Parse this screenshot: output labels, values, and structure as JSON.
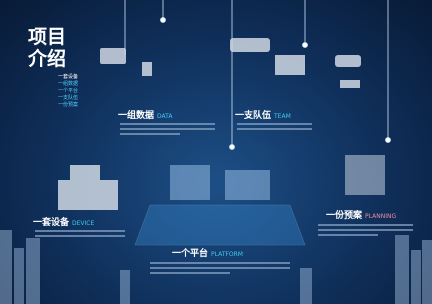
{
  "header": {
    "title_lines": [
      "项目",
      "介绍"
    ],
    "menu": [
      "一套设备",
      "一组数据",
      "一个平台",
      "一支队伍",
      "一份预案"
    ]
  },
  "sections": [
    {
      "title": "一组数据",
      "subtitle": "DATA"
    },
    {
      "title": "一支队伍",
      "subtitle": "TEAM"
    },
    {
      "title": "一套设备",
      "subtitle": "DEVICE"
    },
    {
      "title": "一个平台",
      "subtitle": "PLATFORM"
    },
    {
      "title": "一份预案",
      "subtitle": "PLANNING"
    }
  ]
}
